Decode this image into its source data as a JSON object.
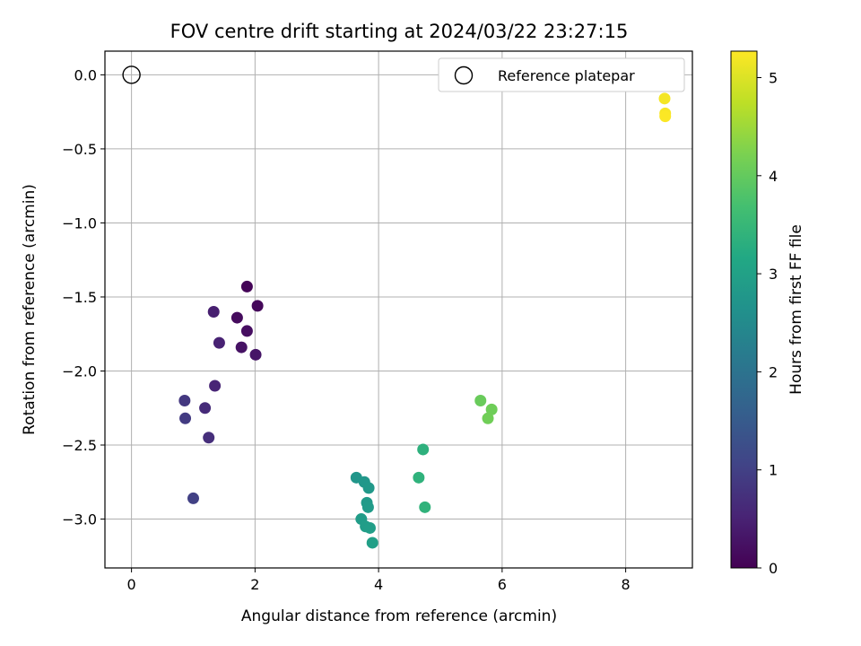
{
  "chart_data": {
    "type": "scatter",
    "title": "FOV centre drift starting at 2024/03/22 23:27:15",
    "xlabel": "Angular distance from reference (arcmin)",
    "ylabel": "Rotation from reference (arcmin)",
    "xlim": [
      -0.43,
      9.08
    ],
    "ylim": [
      -3.33,
      0.16
    ],
    "xticks": [
      0,
      2,
      4,
      6,
      8
    ],
    "yticks": [
      0.0,
      -0.5,
      -1.0,
      -1.5,
      -2.0,
      -2.5,
      -3.0
    ],
    "xtick_labels": [
      "0",
      "2",
      "4",
      "6",
      "8"
    ],
    "ytick_labels": [
      "0.0",
      "−0.5",
      "−1.0",
      "−1.5",
      "−2.0",
      "−2.5",
      "−3.0"
    ],
    "grid": true,
    "colormap": "viridis",
    "colorbar": {
      "label": "Hours from first FF file",
      "range": [
        0,
        5.27
      ],
      "ticks": [
        0,
        1,
        2,
        3,
        4,
        5
      ],
      "tick_labels": [
        "0",
        "1",
        "2",
        "3",
        "4",
        "5"
      ]
    },
    "reference": {
      "name": "Reference platepar",
      "x": 0,
      "y": 0
    },
    "legend": {
      "entries": [
        "Reference platepar"
      ],
      "position": "upper right"
    },
    "points": [
      {
        "x": 1.87,
        "y": -1.43,
        "hours": 0.05
      },
      {
        "x": 2.04,
        "y": -1.56,
        "hours": 0.1
      },
      {
        "x": 1.71,
        "y": -1.64,
        "hours": 0.15
      },
      {
        "x": 1.87,
        "y": -1.73,
        "hours": 0.2
      },
      {
        "x": 1.78,
        "y": -1.84,
        "hours": 0.25
      },
      {
        "x": 2.01,
        "y": -1.89,
        "hours": 0.3
      },
      {
        "x": 1.33,
        "y": -1.6,
        "hours": 0.45
      },
      {
        "x": 1.42,
        "y": -1.81,
        "hours": 0.5
      },
      {
        "x": 1.35,
        "y": -2.1,
        "hours": 0.55
      },
      {
        "x": 1.19,
        "y": -2.25,
        "hours": 0.65
      },
      {
        "x": 1.25,
        "y": -2.45,
        "hours": 0.7
      },
      {
        "x": 0.86,
        "y": -2.2,
        "hours": 0.85
      },
      {
        "x": 0.87,
        "y": -2.32,
        "hours": 0.9
      },
      {
        "x": 1.0,
        "y": -2.86,
        "hours": 1.0
      },
      {
        "x": 3.64,
        "y": -2.72,
        "hours": 2.75
      },
      {
        "x": 3.77,
        "y": -2.75,
        "hours": 2.78
      },
      {
        "x": 3.84,
        "y": -2.79,
        "hours": 2.8
      },
      {
        "x": 3.81,
        "y": -2.89,
        "hours": 2.83
      },
      {
        "x": 3.83,
        "y": -2.92,
        "hours": 2.86
      },
      {
        "x": 3.72,
        "y": -3.0,
        "hours": 2.88
      },
      {
        "x": 3.79,
        "y": -3.05,
        "hours": 2.9
      },
      {
        "x": 3.86,
        "y": -3.06,
        "hours": 2.93
      },
      {
        "x": 3.9,
        "y": -3.16,
        "hours": 2.96
      },
      {
        "x": 4.72,
        "y": -2.53,
        "hours": 3.35
      },
      {
        "x": 4.65,
        "y": -2.72,
        "hours": 3.38
      },
      {
        "x": 4.75,
        "y": -2.92,
        "hours": 3.4
      },
      {
        "x": 5.65,
        "y": -2.2,
        "hours": 4.05
      },
      {
        "x": 5.83,
        "y": -2.26,
        "hours": 4.1
      },
      {
        "x": 5.77,
        "y": -2.32,
        "hours": 4.12
      },
      {
        "x": 8.63,
        "y": -0.16,
        "hours": 5.2
      },
      {
        "x": 8.64,
        "y": -0.26,
        "hours": 5.22
      },
      {
        "x": 8.64,
        "y": -0.28,
        "hours": 5.25
      }
    ]
  }
}
